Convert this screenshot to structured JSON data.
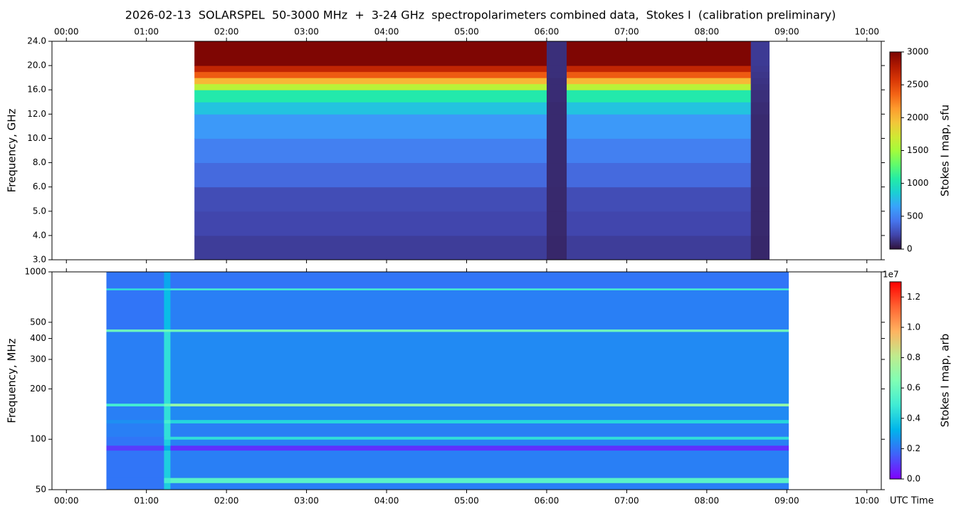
{
  "chart_data": [
    {
      "type": "heatmap",
      "title": "2026-02-13  SOLARSPEL  50-3000 MHz  +  3-24 GHz  spectropolarimeters combined data,  Stokes I  (calibration preliminary)",
      "ylabel": "Frequency, GHz",
      "xlim": [
        -0.18,
        10.18
      ],
      "xticks": [
        {
          "value": 0,
          "label": "00:00"
        },
        {
          "value": 1,
          "label": "01:00"
        },
        {
          "value": 2,
          "label": "02:00"
        },
        {
          "value": 3,
          "label": "03:00"
        },
        {
          "value": 4,
          "label": "04:00"
        },
        {
          "value": 5,
          "label": "05:00"
        },
        {
          "value": 6,
          "label": "06:00"
        },
        {
          "value": 7,
          "label": "07:00"
        },
        {
          "value": 8,
          "label": "08:00"
        },
        {
          "value": 9,
          "label": "09:00"
        },
        {
          "value": 10,
          "label": "10:00"
        }
      ],
      "xtick_labels": "top",
      "ylim": [
        3,
        24
      ],
      "yticks": [
        {
          "value": 3,
          "label": "3.0"
        },
        {
          "value": 4,
          "label": "4.0"
        },
        {
          "value": 5,
          "label": "5.0"
        },
        {
          "value": 6,
          "label": "6.0"
        },
        {
          "value": 8,
          "label": "8.0"
        },
        {
          "value": 10,
          "label": "10.0"
        },
        {
          "value": 12,
          "label": "12.0"
        },
        {
          "value": 16,
          "label": "16.0"
        },
        {
          "value": 20,
          "label": "20.0"
        },
        {
          "value": 24,
          "label": "24.0"
        }
      ],
      "x_edges": [
        1.6,
        6.0,
        6.25,
        8.55,
        8.78
      ],
      "y_edges": [
        3,
        4,
        5,
        6,
        8,
        10,
        12,
        14,
        16,
        17,
        18,
        19,
        20,
        24
      ],
      "z": [
        [
          180,
          90,
          180,
          90
        ],
        [
          220,
          95,
          220,
          95
        ],
        [
          250,
          95,
          250,
          95
        ],
        [
          380,
          100,
          380,
          100
        ],
        [
          480,
          100,
          480,
          100
        ],
        [
          600,
          100,
          600,
          100
        ],
        [
          800,
          100,
          800,
          110
        ],
        [
          1050,
          110,
          1050,
          120
        ],
        [
          1600,
          110,
          1600,
          130
        ],
        [
          2000,
          110,
          2000,
          140
        ],
        [
          2400,
          120,
          2400,
          150
        ],
        [
          2700,
          120,
          2700,
          160
        ],
        [
          2980,
          120,
          2980,
          170
        ]
      ],
      "clim": [
        0,
        3000
      ],
      "cticks": [
        0,
        500,
        1000,
        1500,
        2000,
        2500,
        3000
      ],
      "colorbar_label": "Stokes I map, sfu",
      "colormap": [
        "#30123b",
        "#4145ab",
        "#4675ed",
        "#39a2fc",
        "#1bcfd4",
        "#24eca6",
        "#61fc6c",
        "#a4fc3b",
        "#d1e834",
        "#f3c63a",
        "#fe9b2d",
        "#f36315",
        "#d93806",
        "#b11901",
        "#7a0403"
      ]
    },
    {
      "type": "heatmap",
      "ylabel": "Frequency, MHz",
      "xlabel": "UTC Time",
      "xlim": [
        -0.18,
        10.18
      ],
      "xticks": [
        {
          "value": 0,
          "label": "00:00"
        },
        {
          "value": 1,
          "label": "01:00"
        },
        {
          "value": 2,
          "label": "02:00"
        },
        {
          "value": 3,
          "label": "03:00"
        },
        {
          "value": 4,
          "label": "04:00"
        },
        {
          "value": 5,
          "label": "05:00"
        },
        {
          "value": 6,
          "label": "06:00"
        },
        {
          "value": 7,
          "label": "07:00"
        },
        {
          "value": 8,
          "label": "08:00"
        },
        {
          "value": 9,
          "label": "09:00"
        },
        {
          "value": 10,
          "label": "10:00"
        }
      ],
      "xtick_labels": "bottom",
      "yscale": "log",
      "ylim": [
        50,
        1000
      ],
      "yticks": [
        50,
        100,
        200,
        300,
        400,
        500,
        1000
      ],
      "x_edges": [
        0.5,
        1.22,
        1.3,
        9.02
      ],
      "y_edges": [
        50,
        55,
        59,
        86,
        92,
        100,
        104,
        125,
        131,
        158,
        164,
        440,
        455,
        780,
        800,
        1000
      ],
      "z": [
        [
          0.2,
          0.4,
          0.22
        ],
        [
          0.2,
          0.5,
          0.55
        ],
        [
          0.2,
          0.4,
          0.22
        ],
        [
          0.1,
          0.3,
          0.08
        ],
        [
          0.2,
          0.4,
          0.22
        ],
        [
          0.2,
          0.45,
          0.45
        ],
        [
          0.22,
          0.45,
          0.22
        ],
        [
          0.25,
          0.5,
          0.42
        ],
        [
          0.22,
          0.45,
          0.24
        ],
        [
          0.5,
          0.6,
          0.7
        ],
        [
          0.22,
          0.45,
          0.24
        ],
        [
          0.6,
          0.6,
          0.6
        ],
        [
          0.2,
          0.35,
          0.22
        ],
        [
          0.45,
          0.45,
          0.5
        ],
        [
          0.2,
          0.3,
          0.2
        ]
      ],
      "clim": [
        0,
        1.3
      ],
      "cticks": [
        {
          "value": 0,
          "label": "0.0"
        },
        {
          "value": 0.2,
          "label": "0.2"
        },
        {
          "value": 0.4,
          "label": "0.4"
        },
        {
          "value": 0.6,
          "label": "0.6"
        },
        {
          "value": 0.8,
          "label": "0.8"
        },
        {
          "value": 1,
          "label": "1.0"
        },
        {
          "value": 1.2,
          "label": "1.2"
        }
      ],
      "colorbar_offset": "1e7",
      "colorbar_label": "Stokes I map, arb",
      "colormap": [
        "#8000ff",
        "#4062fa",
        "#00b5eb",
        "#40ecd4",
        "#80ffb4",
        "#c0eb8d",
        "#ffb360",
        "#ff6231",
        "#ff0000"
      ]
    }
  ]
}
